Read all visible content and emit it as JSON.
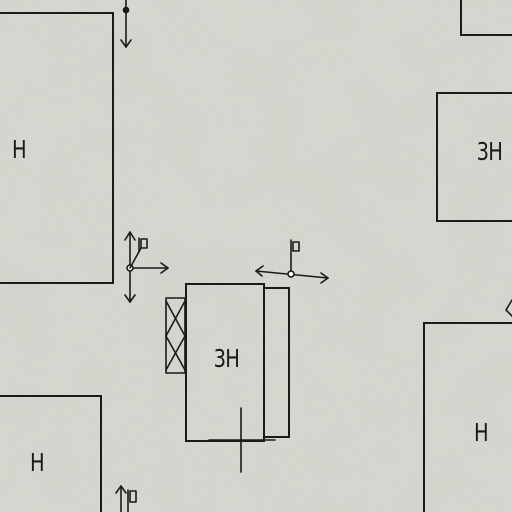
{
  "map": {
    "colors": {
      "paper": "#d6d5ce",
      "ink": "#1a1a1a"
    },
    "buildings": [
      {
        "label": "Н"
      },
      {
        "label": ""
      },
      {
        "label": "3Н"
      },
      {
        "label": "3Н"
      },
      {
        "label": ""
      },
      {
        "label": "Н"
      },
      {
        "label": "Н"
      }
    ],
    "symbols": {
      "gate": "gate-icon",
      "street_lamps": "street-lamp-icon",
      "pointer_arrows": "arrow-icon"
    }
  }
}
